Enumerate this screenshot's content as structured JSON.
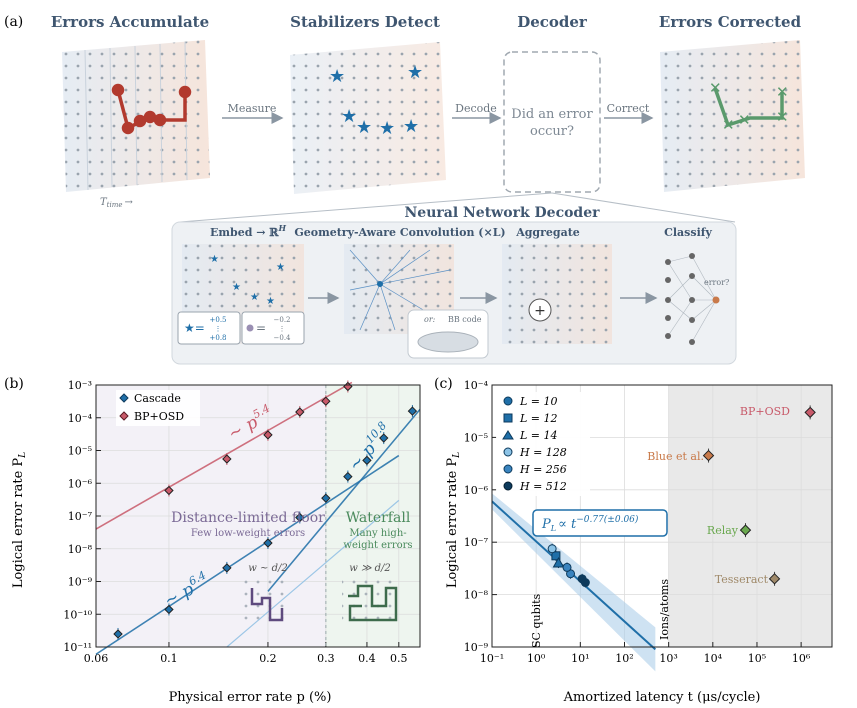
{
  "panel_a": {
    "label": "(a)",
    "headers": [
      "Errors Accumulate",
      "Stabilizers Detect",
      "Decoder",
      "Errors Corrected"
    ],
    "arrows": [
      "Measure",
      "Decode",
      "Correct"
    ],
    "decoder_text": [
      "Did an error",
      "occur?"
    ],
    "time_label": "T",
    "time_sub": "time",
    "time_arrow": "→",
    "nn": {
      "title": "Neural Network Decoder",
      "embed": "Embed → ℝ",
      "embed_sup": "H",
      "conv": "Geometry-Aware Convolution (×L)",
      "aggregate": "Aggregate",
      "classify": "Classify",
      "vec1": [
        "+0.5",
        "⋮",
        "+0.8"
      ],
      "vec2": [
        "−0.2",
        "⋮",
        "−0.4"
      ],
      "bb_code": "BB code",
      "bb_or": "or:",
      "error_q": "error?"
    },
    "colors": {
      "red": "#b23a2e",
      "blue": "#1f6fa8",
      "green": "#5a9a6c"
    }
  },
  "panel_b": {
    "label": "(b)",
    "legend": [
      "Cascade",
      "BP+OSD"
    ],
    "xlabel": "Physical error rate p (%)",
    "ylabel": "Logical error rate P",
    "ylabel_sub": "L",
    "annot_floor": "Distance-limited floor",
    "annot_floor_sub": "Few low-weight errors",
    "annot_waterfall": "Waterfall",
    "annot_waterfall_sub": [
      "Many high-",
      "weight errors"
    ],
    "w_small": "w ~ d/2",
    "w_large": "w ≫ d/2",
    "slope_bp": {
      "base": "~ p",
      "exp": "5.4"
    },
    "slope_casc_low": {
      "base": "~ p",
      "exp": "6.4"
    },
    "slope_casc_high": {
      "base": "~ p",
      "exp": "10.8"
    }
  },
  "panel_c": {
    "label": "(c)",
    "xlabel": "Amortized latency t (μs/cycle)",
    "ylabel": "Logical error rate P",
    "ylabel_sub": "L",
    "fit_label": "P",
    "fit_sub": "L",
    "fit_rest": "∝ t",
    "fit_exp": "−0.77(±0.06)",
    "legend": [
      {
        "label": "L = 10",
        "marker": "circle"
      },
      {
        "label": "L = 12",
        "marker": "square"
      },
      {
        "label": "L = 14",
        "marker": "triangle"
      },
      {
        "label": "H = 128",
        "marker": "circle-light"
      },
      {
        "label": "H = 256",
        "marker": "circle"
      },
      {
        "label": "H = 512",
        "marker": "circle-dark"
      }
    ],
    "region_sc": "SC qubits",
    "region_ions": "Ions/atoms",
    "labels": [
      "BP+OSD",
      "Blue et al.",
      "Relay",
      "Tesseract"
    ]
  },
  "chart_data": [
    {
      "type": "scatter",
      "title": "",
      "xlabel": "Physical error rate p (%)",
      "ylabel": "Logical error rate P_L",
      "xscale": "log",
      "yscale": "log",
      "xlim": [
        0.06,
        0.58
      ],
      "ylim": [
        1e-11,
        0.001
      ],
      "xticks": [
        0.06,
        0.1,
        0.2,
        0.3,
        0.4,
        0.5
      ],
      "xticklabels": [
        "0.06",
        "0.1",
        "0.2",
        "0.3",
        "0.4",
        "0.5"
      ],
      "yticks": [
        1e-11,
        1e-10,
        1e-09,
        1e-08,
        1e-07,
        1e-06,
        1e-05,
        0.0001,
        0.001
      ],
      "yticklabels": [
        "10⁻¹¹",
        "10⁻¹⁰",
        "10⁻⁹",
        "10⁻⁸",
        "10⁻⁷",
        "10⁻⁶",
        "10⁻⁵",
        "10⁻⁴",
        "10⁻³"
      ],
      "series": [
        {
          "name": "Cascade",
          "color": "#1f6fa8",
          "x": [
            0.07,
            0.1,
            0.15,
            0.2,
            0.25,
            0.3,
            0.35,
            0.4,
            0.45,
            0.55
          ],
          "y": [
            2.5e-11,
            1.4e-10,
            2.6e-09,
            1.5e-08,
            9e-08,
            3.5e-07,
            1.6e-06,
            5e-06,
            2.4e-05,
            0.00016
          ]
        },
        {
          "name": "BP+OSD",
          "color": "#c85a6a",
          "x": [
            0.1,
            0.15,
            0.2,
            0.25,
            0.3,
            0.35
          ],
          "y": [
            6e-07,
            5.5e-06,
            3e-05,
            0.00015,
            0.00032,
            0.0009
          ]
        }
      ],
      "fits": [
        {
          "name": "BP+OSD fit",
          "slope": 5.4,
          "color": "#c85a6a",
          "x": [
            0.06,
            0.36
          ],
          "y": [
            4e-08,
            0.0012
          ]
        },
        {
          "name": "Cascade floor fit",
          "slope": 6.4,
          "color": "#1f6fa8",
          "x": [
            0.06,
            0.5
          ],
          "y": [
            6e-12,
            7e-06
          ]
        },
        {
          "name": "Cascade waterfall fit",
          "slope": 10.8,
          "color": "#1f6fa8",
          "x": [
            0.2,
            0.58
          ],
          "y": [
            5e-10,
            0.00018
          ]
        }
      ]
    },
    {
      "type": "scatter",
      "title": "",
      "xlabel": "Amortized latency t (μs/cycle)",
      "ylabel": "Logical error rate P_L",
      "xscale": "log",
      "yscale": "log",
      "xlim": [
        0.1,
        5000000
      ],
      "ylim": [
        1e-09,
        0.0001
      ],
      "xticks": [
        0.1,
        1,
        10,
        100,
        1000,
        10000,
        100000,
        1000000
      ],
      "xticklabels": [
        "10⁻¹",
        "10⁰",
        "10¹",
        "10²",
        "10³",
        "10⁴",
        "10⁵",
        "10⁶"
      ],
      "yticks": [
        1e-09,
        1e-08,
        1e-07,
        1e-06,
        1e-05,
        0.0001
      ],
      "yticklabels": [
        "10⁻⁹",
        "10⁻⁸",
        "10⁻⁷",
        "10⁻⁶",
        "10⁻⁵",
        "10⁻⁴"
      ],
      "shaded_region_x": [
        1000,
        5000000
      ],
      "series": [
        {
          "name": "L = 10",
          "marker": "circle",
          "x": [
            6.0
          ],
          "y": [
            2.5e-08
          ]
        },
        {
          "name": "L = 12",
          "marker": "square",
          "x": [
            2.8
          ],
          "y": [
            5.5e-08
          ]
        },
        {
          "name": "L = 14",
          "marker": "triangle",
          "x": [
            3.2
          ],
          "y": [
            4e-08
          ]
        },
        {
          "name": "H = 128",
          "marker": "circle-light",
          "x": [
            2.3
          ],
          "y": [
            7.5e-08
          ]
        },
        {
          "name": "H = 256",
          "marker": "circle",
          "x": [
            5.0
          ],
          "y": [
            3.3e-08
          ]
        },
        {
          "name": "H = 512",
          "marker": "circle-dark",
          "x": [
            11,
            13
          ],
          "y": [
            2e-08,
            1.7e-08
          ]
        }
      ],
      "baselines": [
        {
          "name": "BP+OSD",
          "x": 1600000,
          "y": 3e-05,
          "color": "#c85a6a"
        },
        {
          "name": "Blue et al.",
          "x": 8000,
          "y": 4.5e-06,
          "color": "#c97a4a"
        },
        {
          "name": "Relay",
          "x": 55000,
          "y": 1.7e-07,
          "color": "#6aa84f"
        },
        {
          "name": "Tesseract",
          "x": 250000,
          "y": 2e-08,
          "color": "#a08a6a"
        }
      ],
      "fit": {
        "label": "P_L ∝ t^-0.77(±0.06)",
        "exponent": -0.77,
        "x": [
          0.1,
          500
        ],
        "y": [
          6e-07,
          9e-10
        ]
      }
    }
  ]
}
